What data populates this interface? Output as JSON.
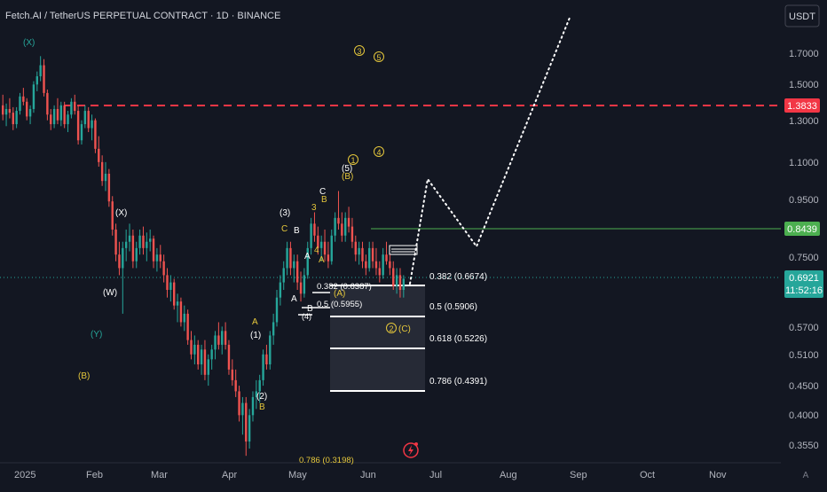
{
  "header": {
    "title": "Fetch.AI / TetherUS PERPETUAL CONTRACT · 1D · BINANCE",
    "currency": "USDT"
  },
  "footer": {
    "scale_mode": "A"
  },
  "chart_data": {
    "type": "candlestick",
    "yscale": "log",
    "ylim": [
      0.33,
      2.2
    ],
    "y_ticks": [
      "1.7000",
      "1.5000",
      "1.3000",
      "1.1000",
      "0.9500",
      "0.7500",
      "0.5700",
      "0.5100",
      "0.4500",
      "0.4000",
      "0.3550"
    ],
    "x_ticks": [
      "2025",
      "Feb",
      "Mar",
      "Apr",
      "May",
      "Jun",
      "Jul",
      "Aug",
      "Sep",
      "Oct",
      "Nov"
    ],
    "price_labels": {
      "resistance": "1.3833",
      "support": "0.8439",
      "current_price": "0.6921",
      "countdown": "11:52:16"
    },
    "fib_labels": [
      "0.382 (0.6674)",
      "0.5 (0.5906)",
      "0.618 (0.5226)",
      "0.786 (0.4391)"
    ],
    "inner_fib_labels": [
      "0.382 (0.6387)",
      "0.5 (0.5955)",
      "0.786 (0.3198)"
    ],
    "wave_labels": [
      {
        "text": "(X)",
        "color": "#26a69a"
      },
      {
        "text": "(X)",
        "color": "#ffffff"
      },
      {
        "text": "(W)",
        "color": "#ffffff"
      },
      {
        "text": "(Y)",
        "color": "#26a69a"
      },
      {
        "text": "(B)",
        "color": "#e5c73b"
      },
      {
        "text": "A",
        "color": "#e5c73b"
      },
      {
        "text": "(1)",
        "color": "#ffffff"
      },
      {
        "text": "(2)",
        "color": "#ffffff"
      },
      {
        "text": "B",
        "color": "#e5c73b"
      },
      {
        "text": "(3)",
        "color": "#ffffff"
      },
      {
        "text": "C",
        "color": "#e5c73b"
      },
      {
        "text": "B",
        "color": "#ffffff"
      },
      {
        "text": "3",
        "color": "#e5c73b"
      },
      {
        "text": "C",
        "color": "#ffffff"
      },
      {
        "text": "B",
        "color": "#e5c73b"
      },
      {
        "text": "A",
        "color": "#ffffff"
      },
      {
        "text": "4",
        "color": "#e5c73b"
      },
      {
        "text": "A",
        "color": "#e5c73b"
      },
      {
        "text": "A",
        "color": "#ffffff"
      },
      {
        "text": "B",
        "color": "#ffffff"
      },
      {
        "text": "(4)",
        "color": "#ffffff"
      },
      {
        "text": "(A)",
        "color": "#e5c73b"
      },
      {
        "text": "(C)",
        "color": "#e5c73b"
      },
      {
        "text": "(5)",
        "color": "#ffffff"
      },
      {
        "text": "(B)",
        "color": "#e5c73b"
      }
    ],
    "circle_labels": [
      "3",
      "5",
      "1",
      "4",
      "2"
    ],
    "colors": {
      "bull": "#26a69a",
      "bear": "#ef5350",
      "resistance": "#f23645",
      "support": "#4caf50",
      "current": "#26a69a",
      "wave_yellow": "#e5c73b",
      "background": "#131722"
    },
    "candles": [
      [
        1.38,
        1.44,
        1.3,
        1.33
      ],
      [
        1.33,
        1.39,
        1.27,
        1.36
      ],
      [
        1.36,
        1.42,
        1.31,
        1.34
      ],
      [
        1.34,
        1.37,
        1.25,
        1.28
      ],
      [
        1.28,
        1.37,
        1.26,
        1.35
      ],
      [
        1.35,
        1.45,
        1.33,
        1.43
      ],
      [
        1.43,
        1.48,
        1.38,
        1.4
      ],
      [
        1.4,
        1.42,
        1.3,
        1.32
      ],
      [
        1.32,
        1.38,
        1.28,
        1.36
      ],
      [
        1.36,
        1.52,
        1.34,
        1.5
      ],
      [
        1.5,
        1.58,
        1.46,
        1.55
      ],
      [
        1.55,
        1.68,
        1.52,
        1.62
      ],
      [
        1.62,
        1.66,
        1.43,
        1.45
      ],
      [
        1.45,
        1.47,
        1.3,
        1.33
      ],
      [
        1.33,
        1.36,
        1.25,
        1.28
      ],
      [
        1.28,
        1.38,
        1.26,
        1.36
      ],
      [
        1.36,
        1.42,
        1.28,
        1.3
      ],
      [
        1.3,
        1.4,
        1.27,
        1.38
      ],
      [
        1.38,
        1.4,
        1.26,
        1.28
      ],
      [
        1.28,
        1.35,
        1.24,
        1.33
      ],
      [
        1.33,
        1.42,
        1.31,
        1.4
      ],
      [
        1.4,
        1.44,
        1.33,
        1.35
      ],
      [
        1.35,
        1.38,
        1.18,
        1.2
      ],
      [
        1.2,
        1.3,
        1.18,
        1.28
      ],
      [
        1.28,
        1.38,
        1.26,
        1.35
      ],
      [
        1.35,
        1.37,
        1.24,
        1.26
      ],
      [
        1.26,
        1.33,
        1.2,
        1.3
      ],
      [
        1.3,
        1.31,
        1.14,
        1.16
      ],
      [
        1.16,
        1.22,
        1.08,
        1.1
      ],
      [
        1.1,
        1.13,
        1.0,
        1.02
      ],
      [
        1.02,
        1.1,
        0.98,
        1.05
      ],
      [
        1.05,
        1.07,
        0.92,
        0.94
      ],
      [
        0.94,
        0.96,
        0.82,
        0.84
      ],
      [
        0.84,
        0.86,
        0.74,
        0.76
      ],
      [
        0.76,
        0.8,
        0.7,
        0.72
      ],
      [
        0.72,
        0.8,
        0.6,
        0.78
      ],
      [
        0.78,
        0.84,
        0.74,
        0.8
      ],
      [
        0.8,
        0.86,
        0.77,
        0.82
      ],
      [
        0.82,
        0.84,
        0.72,
        0.74
      ],
      [
        0.74,
        0.8,
        0.72,
        0.78
      ],
      [
        0.78,
        0.84,
        0.76,
        0.82
      ],
      [
        0.82,
        0.85,
        0.76,
        0.78
      ],
      [
        0.78,
        0.83,
        0.74,
        0.8
      ],
      [
        0.8,
        0.84,
        0.77,
        0.81
      ],
      [
        0.81,
        0.82,
        0.72,
        0.74
      ],
      [
        0.74,
        0.78,
        0.71,
        0.76
      ],
      [
        0.76,
        0.79,
        0.72,
        0.74
      ],
      [
        0.74,
        0.76,
        0.68,
        0.7
      ],
      [
        0.7,
        0.72,
        0.64,
        0.66
      ],
      [
        0.66,
        0.7,
        0.63,
        0.68
      ],
      [
        0.68,
        0.69,
        0.61,
        0.62
      ],
      [
        0.62,
        0.65,
        0.58,
        0.63
      ],
      [
        0.63,
        0.64,
        0.57,
        0.58
      ],
      [
        0.58,
        0.62,
        0.56,
        0.6
      ],
      [
        0.6,
        0.61,
        0.53,
        0.54
      ],
      [
        0.54,
        0.56,
        0.5,
        0.51
      ],
      [
        0.51,
        0.55,
        0.49,
        0.53
      ],
      [
        0.53,
        0.54,
        0.48,
        0.49
      ],
      [
        0.49,
        0.53,
        0.47,
        0.52
      ],
      [
        0.52,
        0.54,
        0.46,
        0.47
      ],
      [
        0.47,
        0.51,
        0.45,
        0.5
      ],
      [
        0.5,
        0.53,
        0.48,
        0.52
      ],
      [
        0.52,
        0.56,
        0.5,
        0.55
      ],
      [
        0.55,
        0.58,
        0.52,
        0.53
      ],
      [
        0.53,
        0.57,
        0.51,
        0.56
      ],
      [
        0.56,
        0.58,
        0.52,
        0.53
      ],
      [
        0.53,
        0.54,
        0.47,
        0.48
      ],
      [
        0.48,
        0.5,
        0.45,
        0.46
      ],
      [
        0.46,
        0.48,
        0.43,
        0.44
      ],
      [
        0.44,
        0.45,
        0.39,
        0.4
      ],
      [
        0.4,
        0.43,
        0.37,
        0.42
      ],
      [
        0.42,
        0.43,
        0.34,
        0.36
      ],
      [
        0.36,
        0.41,
        0.35,
        0.4
      ],
      [
        0.4,
        0.44,
        0.39,
        0.43
      ],
      [
        0.43,
        0.46,
        0.41,
        0.44
      ],
      [
        0.44,
        0.47,
        0.42,
        0.46
      ],
      [
        0.46,
        0.52,
        0.45,
        0.51
      ],
      [
        0.51,
        0.53,
        0.48,
        0.49
      ],
      [
        0.49,
        0.56,
        0.48,
        0.55
      ],
      [
        0.55,
        0.6,
        0.53,
        0.58
      ],
      [
        0.58,
        0.66,
        0.57,
        0.64
      ],
      [
        0.64,
        0.7,
        0.62,
        0.68
      ],
      [
        0.68,
        0.74,
        0.66,
        0.72
      ],
      [
        0.72,
        0.8,
        0.7,
        0.78
      ],
      [
        0.78,
        0.8,
        0.7,
        0.72
      ],
      [
        0.72,
        0.76,
        0.68,
        0.74
      ],
      [
        0.74,
        0.76,
        0.66,
        0.68
      ],
      [
        0.68,
        0.71,
        0.63,
        0.65
      ],
      [
        0.65,
        0.72,
        0.64,
        0.7
      ],
      [
        0.7,
        0.8,
        0.69,
        0.78
      ],
      [
        0.78,
        0.88,
        0.76,
        0.86
      ],
      [
        0.86,
        0.9,
        0.8,
        0.82
      ],
      [
        0.82,
        0.85,
        0.76,
        0.78
      ],
      [
        0.78,
        0.82,
        0.74,
        0.8
      ],
      [
        0.8,
        0.84,
        0.74,
        0.76
      ],
      [
        0.76,
        0.8,
        0.72,
        0.74
      ],
      [
        0.74,
        0.84,
        0.73,
        0.82
      ],
      [
        0.82,
        0.9,
        0.8,
        0.88
      ],
      [
        0.88,
        0.98,
        0.84,
        0.86
      ],
      [
        0.86,
        0.9,
        0.8,
        0.82
      ],
      [
        0.82,
        0.9,
        0.8,
        0.88
      ],
      [
        0.88,
        0.92,
        0.83,
        0.85
      ],
      [
        0.85,
        0.88,
        0.78,
        0.8
      ],
      [
        0.8,
        0.82,
        0.74,
        0.76
      ],
      [
        0.76,
        0.8,
        0.73,
        0.78
      ],
      [
        0.78,
        0.8,
        0.72,
        0.74
      ],
      [
        0.74,
        0.76,
        0.7,
        0.72
      ],
      [
        0.72,
        0.8,
        0.71,
        0.78
      ],
      [
        0.78,
        0.8,
        0.72,
        0.74
      ],
      [
        0.74,
        0.78,
        0.7,
        0.72
      ],
      [
        0.72,
        0.74,
        0.68,
        0.7
      ],
      [
        0.7,
        0.78,
        0.69,
        0.76
      ],
      [
        0.76,
        0.8,
        0.73,
        0.74
      ],
      [
        0.74,
        0.76,
        0.7,
        0.72
      ],
      [
        0.72,
        0.74,
        0.66,
        0.67
      ],
      [
        0.67,
        0.72,
        0.65,
        0.7
      ],
      [
        0.7,
        0.72,
        0.64,
        0.66
      ],
      [
        0.66,
        0.7,
        0.64,
        0.69
      ]
    ]
  }
}
